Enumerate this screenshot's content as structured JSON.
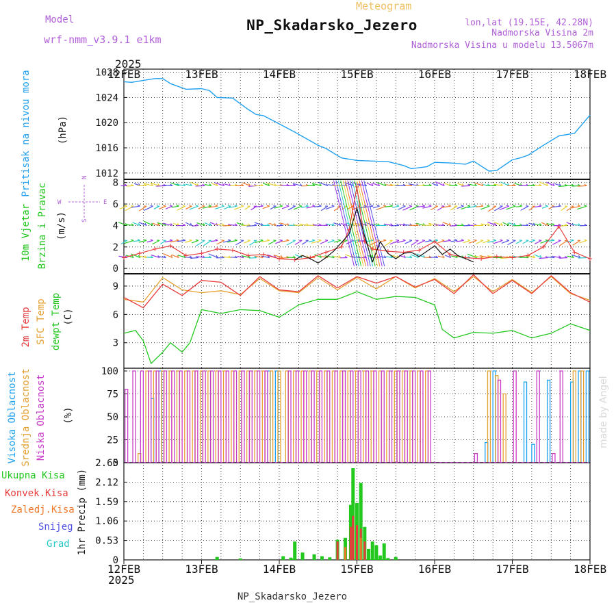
{
  "header": {
    "model_label": "Model",
    "model_name": "wrf-nmm_v3.9.1 e1km",
    "title": "NP_Skadarsko_Jezero",
    "meteogram_label": "Meteogram",
    "coords": "lon,lat (19.15E, 42.28N)",
    "altitude": "Nadmorska Visina 2m",
    "model_altitude": "Nadmorska Visina u modelu 13.5067m",
    "footer_title": "NP_Skadarsko_Jezero",
    "watermark": "made by Angel",
    "year_top": "2025",
    "year_bottom": "2025"
  },
  "colors": {
    "pressure": "#1ea0f0",
    "temp2m": "#e83c3c",
    "sfc": "#e6a030",
    "dewpt": "#22c81e",
    "high_cloud": "#1ea0f0",
    "mid_cloud": "#e6a030",
    "low_cloud": "#c83cc8",
    "snow": "#5050e6",
    "grad": "#28c8c8",
    "conv": "#e83c3c",
    "frozen": "#f07828",
    "wind_speed": "#111111",
    "gust": "#e83c3c",
    "model_purple": "#b060d8",
    "meteo_yellow": "#f0c060"
  },
  "x_axis": {
    "ticks": [
      "12FEB",
      "13FEB",
      "14FEB",
      "15FEB",
      "16FEB",
      "17FEB",
      "18FEB"
    ]
  },
  "panels": {
    "pressure": {
      "label": "Pritisak na nivou mora",
      "unit": "(hPa)"
    },
    "wind": {
      "label1": "10m Vjetar",
      "label2": "Brzina i Pravac",
      "unit": "(m/s)",
      "compass": {
        "n": "N",
        "s": "S",
        "e": "E",
        "w": "W"
      }
    },
    "temp": {
      "label_2m": "2m Temp",
      "label_sfc": "SFC Temp",
      "label_dew": "dewpt Temp",
      "unit": "(C)"
    },
    "cloud": {
      "label_high": "Visoka Oblacnost",
      "label_mid": "Srednja Oblacnost",
      "label_low": "Niska Oblacnost",
      "unit": "(%)"
    },
    "precip": {
      "unit": "1hr Precip (mm)",
      "legend": [
        "Ukupna Kisa",
        "Konvek.Kisa",
        "Zaledj.Kisa",
        "Snijeg",
        "Grad"
      ]
    }
  },
  "chart_data": [
    {
      "type": "line",
      "title": "",
      "ylabel": "Pritisak na nivou mora (hPa)",
      "x_unit": "days since 12FEB 2025 00Z",
      "ylim": [
        1011,
        1028.5
      ],
      "yticks": [
        1012,
        1016,
        1020,
        1024,
        1028
      ],
      "series": [
        {
          "name": "Pritisak",
          "x": [
            0,
            0.1,
            0.3,
            0.4,
            0.5,
            0.6,
            0.8,
            1.0,
            1.1,
            1.2,
            1.4,
            1.6,
            1.7,
            1.8,
            2.0,
            2.2,
            2.4,
            2.5,
            2.6,
            2.8,
            3.0,
            3.2,
            3.4,
            3.6,
            3.7,
            3.9,
            4.0,
            4.2,
            4.4,
            4.5,
            4.6,
            4.7,
            4.8,
            5.0,
            5.1,
            5.2,
            5.4,
            5.6,
            5.8,
            6.0
          ],
          "y": [
            1026.5,
            1026.4,
            1026.8,
            1027.0,
            1027.0,
            1026.2,
            1025.3,
            1025.4,
            1025.1,
            1024.0,
            1023.9,
            1022.1,
            1021.3,
            1021.1,
            1019.8,
            1018.5,
            1017.1,
            1016.4,
            1015.9,
            1014.4,
            1014.0,
            1013.9,
            1013.8,
            1013.2,
            1012.7,
            1013.0,
            1013.7,
            1013.6,
            1013.4,
            1013.9,
            1013.1,
            1012.3,
            1012.4,
            1014.1,
            1014.4,
            1014.8,
            1016.4,
            1017.9,
            1018.3,
            1021.2
          ]
        }
      ]
    },
    {
      "type": "line",
      "title": "",
      "ylabel": "10m Vjetar Brzina i Pravac (m/s)",
      "ylim": [
        -0.5,
        8.3
      ],
      "yticks": [
        0,
        2,
        4,
        6,
        8
      ],
      "series": [
        {
          "name": "Brzina",
          "x": [
            2.2,
            2.3,
            2.4,
            2.5,
            2.6,
            2.7,
            2.8,
            2.9,
            3.0,
            3.1,
            3.2,
            3.3,
            3.4,
            3.5,
            3.6,
            3.7,
            3.8,
            3.9,
            4.0,
            4.1,
            4.2,
            4.3,
            4.4,
            4.5
          ],
          "y": [
            0.8,
            1.2,
            0.9,
            0.5,
            1.0,
            1.6,
            2.4,
            3.2,
            5.6,
            3.0,
            0.6,
            2.5,
            1.4,
            0.9,
            1.4,
            1.5,
            1.1,
            1.6,
            2.1,
            1.3,
            1.8,
            1.2,
            0.9,
            0.6
          ]
        },
        {
          "name": "Udari",
          "x": [
            0,
            0.2,
            0.4,
            0.6,
            0.8,
            1.0,
            1.2,
            1.4,
            1.6,
            1.8,
            2.0,
            2.2,
            2.4,
            2.6,
            2.8,
            2.9,
            3.0,
            3.1,
            3.2,
            3.4,
            3.6,
            3.8,
            4.0,
            4.2,
            4.4,
            4.6,
            4.8,
            5.0,
            5.2,
            5.4,
            5.6,
            5.8,
            6.0
          ],
          "y": [
            1.0,
            1.4,
            1.8,
            2.1,
            1.2,
            1.4,
            1.8,
            1.7,
            1.2,
            1.3,
            0.9,
            0.8,
            1.0,
            1.5,
            2.0,
            3.6,
            7.6,
            2.5,
            1.8,
            1.6,
            1.5,
            1.7,
            2.5,
            1.3,
            1.0,
            0.9,
            1.1,
            1.0,
            1.2,
            2.0,
            3.9,
            1.5,
            0.9
          ]
        }
      ]
    },
    {
      "type": "line",
      "title": "",
      "ylabel": "Temp (C)",
      "ylim": [
        0.3,
        10.3
      ],
      "yticks": [
        3,
        6,
        9
      ],
      "series": [
        {
          "name": "2m Temp",
          "x": [
            0,
            0.25,
            0.5,
            0.75,
            1.0,
            1.25,
            1.5,
            1.75,
            2.0,
            2.25,
            2.5,
            2.75,
            3.0,
            3.25,
            3.5,
            3.75,
            4.0,
            4.25,
            4.5,
            4.75,
            5.0,
            5.25,
            5.5,
            5.75,
            6.0
          ],
          "y": [
            7.8,
            6.7,
            9.2,
            8.0,
            9.6,
            9.4,
            8.0,
            10.0,
            8.6,
            8.4,
            10.1,
            8.8,
            10.0,
            9.3,
            10.0,
            8.9,
            9.7,
            8.2,
            10.2,
            8.2,
            9.6,
            8.2,
            10.1,
            8.3,
            7.3
          ]
        },
        {
          "name": "SFC Temp",
          "x": [
            0,
            0.25,
            0.5,
            0.75,
            1.0,
            1.25,
            1.5,
            1.75,
            2.0,
            2.25,
            2.5,
            2.75,
            3.0,
            3.25,
            3.5,
            3.75,
            4.0,
            4.25,
            4.5,
            4.75,
            5.0,
            5.25,
            5.5,
            5.75,
            6.0
          ],
          "y": [
            7.6,
            7.3,
            9.9,
            8.6,
            8.3,
            8.5,
            8.1,
            9.8,
            8.5,
            8.3,
            9.9,
            8.6,
            9.9,
            8.7,
            10.0,
            8.8,
            9.8,
            8.4,
            10.0,
            8.4,
            9.7,
            8.3,
            10.0,
            8.2,
            7.5
          ]
        },
        {
          "name": "dewpt Temp",
          "x": [
            0,
            0.15,
            0.25,
            0.35,
            0.5,
            0.6,
            0.75,
            0.85,
            1.0,
            1.25,
            1.5,
            1.75,
            2.0,
            2.25,
            2.5,
            2.75,
            3.0,
            3.25,
            3.5,
            3.75,
            4.0,
            4.1,
            4.25,
            4.5,
            4.75,
            5.0,
            5.25,
            5.5,
            5.75,
            6.0
          ],
          "y": [
            4.0,
            4.3,
            3.2,
            0.8,
            2.0,
            3.0,
            2.0,
            3.0,
            6.5,
            6.1,
            6.5,
            6.4,
            5.7,
            7.0,
            7.6,
            7.6,
            8.4,
            7.6,
            7.9,
            7.8,
            7.0,
            4.4,
            3.5,
            4.1,
            4.0,
            4.3,
            3.5,
            4.0,
            5.0,
            4.3
          ]
        }
      ]
    },
    {
      "type": "bar",
      "title": "",
      "ylabel": "Oblacnost (%)",
      "ylim": [
        0,
        103
      ],
      "yticks": [
        0,
        25,
        50,
        75,
        100
      ],
      "series": [
        {
          "name": "Visoka Oblacnost",
          "x": [
            0.35,
            0.45,
            1.85,
            1.95,
            4.65,
            4.75,
            5.15,
            5.25,
            5.45,
            5.75,
            5.85,
            5.95
          ],
          "values": [
            70,
            100,
            100,
            100,
            22,
            100,
            88,
            20,
            90,
            88,
            100,
            100
          ]
        },
        {
          "name": "Srednja Oblacnost",
          "x": [
            0.2,
            0.3,
            0.4,
            0.5,
            0.6,
            0.7,
            0.8,
            0.9,
            1.0,
            1.1,
            1.2,
            1.3,
            1.4,
            1.5,
            1.6,
            1.7,
            1.8,
            1.9,
            2.0,
            2.1,
            2.2,
            2.3,
            2.4,
            2.5,
            2.6,
            2.7,
            2.8,
            2.9,
            3.0,
            3.1,
            3.2,
            3.3,
            3.4,
            3.5,
            3.6,
            3.7,
            3.8,
            3.9,
            4.7,
            4.8,
            4.9,
            5.8,
            5.9
          ],
          "values": [
            10,
            100,
            100,
            100,
            100,
            100,
            100,
            100,
            100,
            100,
            100,
            100,
            100,
            100,
            100,
            100,
            100,
            100,
            100,
            100,
            100,
            100,
            100,
            100,
            100,
            100,
            100,
            100,
            100,
            100,
            100,
            100,
            100,
            100,
            100,
            100,
            100,
            100,
            100,
            95,
            75,
            100,
            100
          ]
        },
        {
          "name": "Niska Oblacnost",
          "x": [
            0.05,
            0.15,
            0.25,
            0.35,
            0.45,
            0.55,
            0.65,
            0.75,
            0.85,
            0.95,
            1.05,
            1.15,
            1.25,
            1.35,
            1.45,
            1.55,
            1.65,
            1.75,
            1.85,
            2.15,
            2.25,
            2.35,
            2.45,
            2.55,
            2.65,
            2.75,
            2.85,
            2.95,
            3.05,
            3.15,
            3.25,
            3.35,
            3.45,
            3.55,
            3.65,
            3.75,
            3.85,
            3.95,
            4.55,
            4.85,
            5.05,
            5.35,
            5.55,
            5.65
          ],
          "values": [
            80,
            100,
            100,
            100,
            100,
            100,
            100,
            100,
            100,
            100,
            100,
            100,
            100,
            100,
            100,
            100,
            100,
            100,
            100,
            100,
            100,
            100,
            100,
            100,
            100,
            100,
            100,
            100,
            100,
            100,
            100,
            100,
            100,
            100,
            100,
            100,
            100,
            100,
            10,
            90,
            100,
            100,
            10,
            100
          ]
        }
      ]
    },
    {
      "type": "bar",
      "title": "",
      "ylabel": "1hr Precip (mm)",
      "ylim": [
        0,
        2.65
      ],
      "yticks": [
        0,
        0.53,
        1.06,
        1.59,
        2.12,
        2.65
      ],
      "series": [
        {
          "name": "Ukupna Kisa",
          "x": [
            1.2,
            1.5,
            2.05,
            2.15,
            2.2,
            2.3,
            2.45,
            2.55,
            2.65,
            2.75,
            2.85,
            2.92,
            2.95,
            3.0,
            3.05,
            3.1,
            3.15,
            3.2,
            3.25,
            3.3,
            3.35,
            3.4,
            3.5
          ],
          "values": [
            0.08,
            0.04,
            0.1,
            0.06,
            0.5,
            0.2,
            0.15,
            0.1,
            0.07,
            0.55,
            0.6,
            1.5,
            2.5,
            1.55,
            2.1,
            0.9,
            0.3,
            0.5,
            0.4,
            0.12,
            0.45,
            0.05,
            0.08
          ]
        },
        {
          "name": "Konvek.Kisa",
          "x": [
            2.75,
            2.92,
            2.95,
            3.0,
            3.05,
            3.1
          ],
          "values": [
            0.5,
            0.9,
            1.2,
            0.95,
            0.85,
            0.5
          ]
        },
        {
          "name": "Zaledj.Kisa",
          "x": [
            2.85,
            3.05
          ],
          "values": [
            0.35,
            0.6
          ]
        },
        {
          "name": "Snijeg",
          "x": [],
          "values": []
        },
        {
          "name": "Grad",
          "x": [],
          "values": []
        }
      ]
    }
  ]
}
